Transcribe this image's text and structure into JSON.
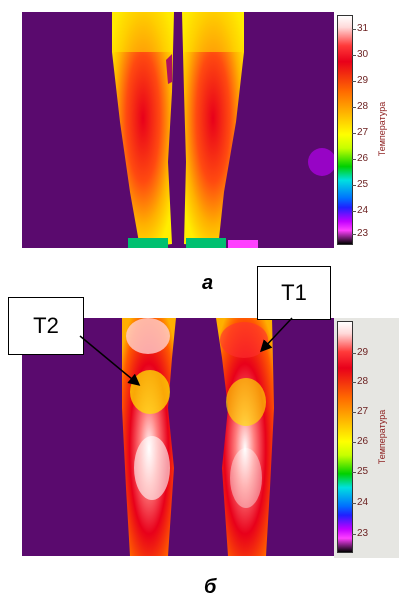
{
  "panel_a": {
    "caption": "a",
    "scale": {
      "title": "Температура",
      "ticks": [
        "31",
        "30",
        "29",
        "28",
        "27",
        "26",
        "25",
        "24",
        "23"
      ]
    }
  },
  "panel_b": {
    "caption": "б",
    "scale": {
      "title": "Температура",
      "ticks": [
        "29",
        "28",
        "27",
        "26",
        "25",
        "24",
        "23"
      ]
    }
  },
  "callouts": {
    "t1": "T1",
    "t2": "T2"
  },
  "colors": {
    "background": "#5a0a6e",
    "hot": "#e8001a",
    "warm": "#ffb000",
    "mid": "#ffff00",
    "highlight": "#ffffff"
  }
}
